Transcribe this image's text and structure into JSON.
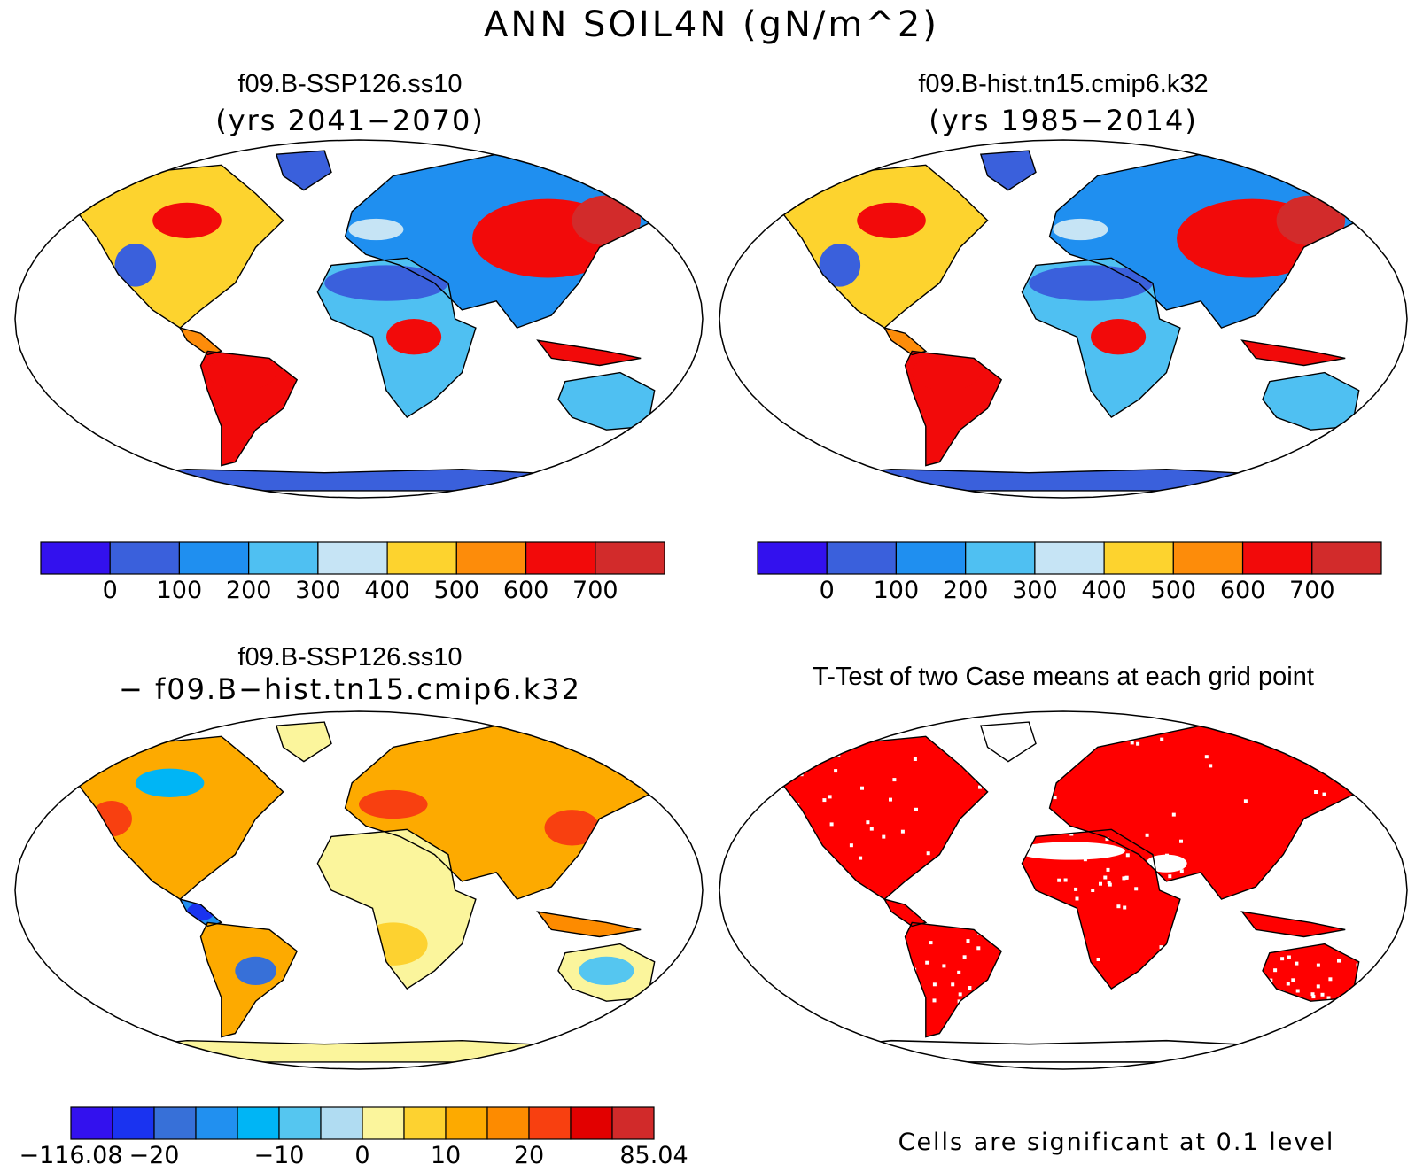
{
  "figure_title": "ANN SOIL4N (gN/m^2)",
  "panels": {
    "top_left": {
      "title": "f09.B-SSP126.ss10",
      "subtitle": "(yrs 2041−2070)"
    },
    "top_right": {
      "title": "f09.B-hist.tn15.cmip6.k32",
      "subtitle": "(yrs 1985−2014)"
    },
    "bottom_left": {
      "title": "f09.B-SSP126.ss10",
      "subtitle": "− f09.B−hist.tn15.cmip6.k32"
    },
    "bottom_right": {
      "title": "T-Test of two Case means at each grid point"
    }
  },
  "colorbars": {
    "abs": {
      "colors": [
        "#3311ee",
        "#3a60dc",
        "#1f8ff0",
        "#4fc0f2",
        "#c6e4f5",
        "#fdd32e",
        "#fd8c0a",
        "#f20a0a",
        "#d22b2b"
      ],
      "labels": [
        "0",
        "100",
        "200",
        "300",
        "400",
        "500",
        "600",
        "700"
      ]
    },
    "diff": {
      "colors": [
        "#3311ee",
        "#1a33f0",
        "#3770d8",
        "#2190f0",
        "#00b5f5",
        "#55c6f0",
        "#b0dcf2",
        "#fbf59c",
        "#fdd230",
        "#fdaa00",
        "#fd8b00",
        "#f84010",
        "#e20000",
        "#d12a2a"
      ],
      "labels": [
        "−116.08",
        "−20",
        "−10",
        "0",
        "10",
        "20",
        "85.04"
      ]
    }
  },
  "map_colors": {
    "ocean": "#ffffff",
    "coast": "#000000"
  },
  "significance_color": "#ff0000",
  "significance_note": "Cells are significant at 0.1 level"
}
